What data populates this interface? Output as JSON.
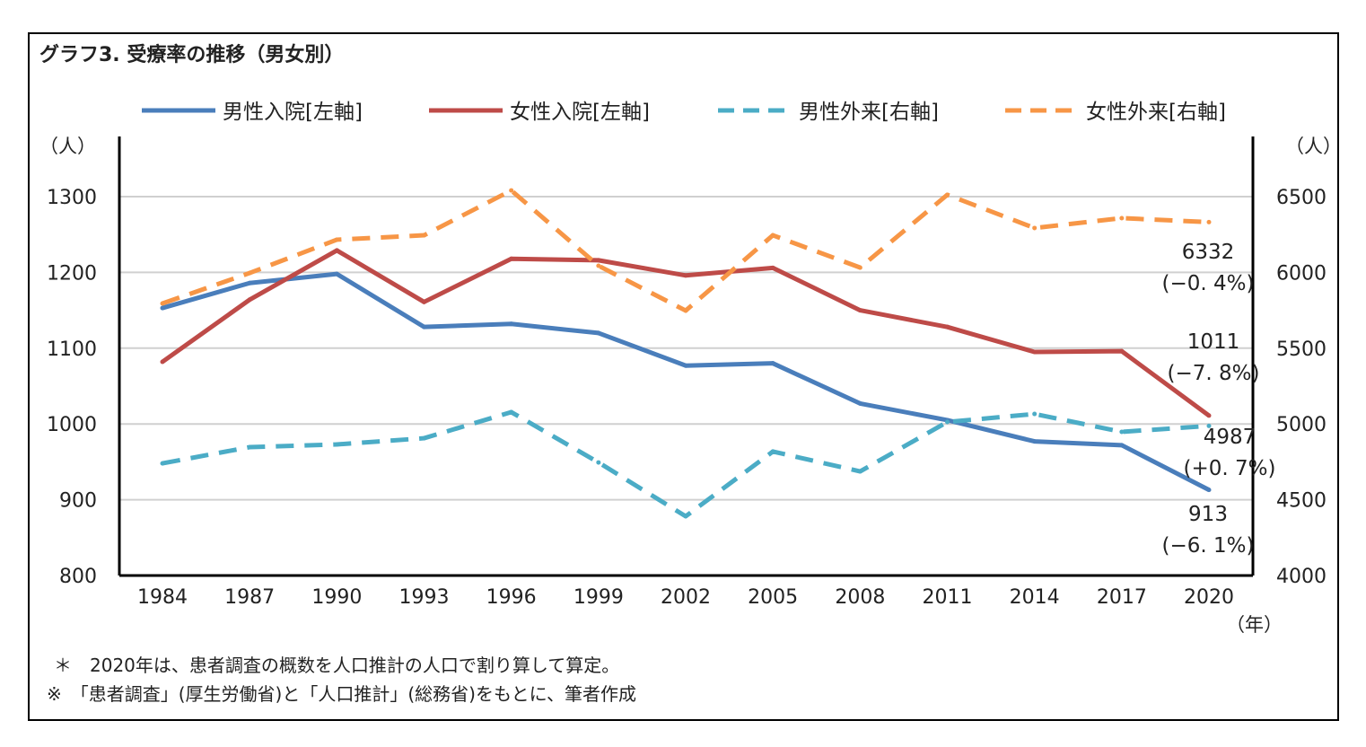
{
  "chart_data": {
    "type": "line",
    "title": "グラフ3. 受療率の推移（男女別）",
    "x": [
      "1984",
      "1987",
      "1990",
      "1993",
      "1996",
      "1999",
      "2002",
      "2005",
      "2008",
      "2011",
      "2014",
      "2017",
      "2020"
    ],
    "xlabel": "（年）",
    "ylabel_left": "（人）",
    "ylabel_right": "（人）",
    "ylim_left": [
      800,
      1300
    ],
    "ylim_right": [
      4000,
      6500
    ],
    "yticks_left": [
      "800",
      "900",
      "1000",
      "1100",
      "1200",
      "1300"
    ],
    "yticks_right": [
      "4000",
      "4500",
      "5000",
      "5500",
      "6000",
      "6500"
    ],
    "grid": true,
    "legend_position": "top",
    "series": [
      {
        "name": "男性入院[左軸]",
        "axis": "left",
        "color": "#4a7ebb",
        "dash": false,
        "values": [
          1153,
          1186,
          1198,
          1128,
          1132,
          1120,
          1077,
          1080,
          1027,
          1005,
          977,
          972,
          913
        ],
        "end_label": "913",
        "end_change": "(−6. 1%)"
      },
      {
        "name": "女性入院[左軸]",
        "axis": "left",
        "color": "#be4b48",
        "dash": false,
        "values": [
          1082,
          1164,
          1229,
          1161,
          1218,
          1216,
          1196,
          1206,
          1150,
          1128,
          1095,
          1096,
          1011
        ],
        "end_label": "1011",
        "end_change": "(−7. 8%)"
      },
      {
        "name": "男性外来[右軸]",
        "axis": "right",
        "color": "#4bacc6",
        "dash": true,
        "values": [
          4740,
          4847,
          4865,
          4906,
          5078,
          4746,
          4391,
          4818,
          4687,
          5013,
          5066,
          4948,
          4987
        ],
        "end_label": "4987",
        "end_change": "(+0. 7%)"
      },
      {
        "name": "女性外来[右軸]",
        "axis": "right",
        "color": "#f79646",
        "dash": true,
        "values": [
          5795,
          5996,
          6216,
          6245,
          6541,
          6044,
          5748,
          6245,
          6032,
          6512,
          6293,
          6358,
          6332
        ],
        "end_label": "6332",
        "end_change": "(−0. 4%)"
      }
    ],
    "notes": [
      "＊　2020年は、患者調査の概数を人口推計の人口で割り算して算定。",
      "※　「患者調査」(厚生労働省)と「人口推計」(総務省)をもとに、筆者作成"
    ]
  }
}
